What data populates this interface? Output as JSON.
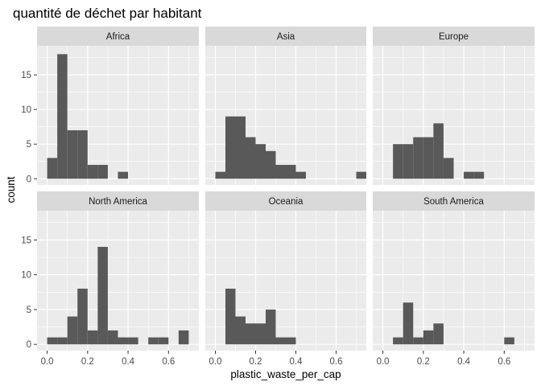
{
  "chart_data": {
    "type": "bar",
    "title": "quantité de déchet par habitant",
    "xlabel": "plastic_waste_per_cap",
    "ylabel": "count",
    "xlim": [
      -0.05,
      0.75
    ],
    "ylim": [
      -0.9,
      19.2
    ],
    "x_ticks": [
      0.0,
      0.2,
      0.4,
      0.6
    ],
    "x_tick_labels": [
      "0.0",
      "0.2",
      "0.4",
      "0.6"
    ],
    "y_ticks": [
      0,
      5,
      10,
      15
    ],
    "y_tick_labels": [
      "0",
      "5",
      "10",
      "15"
    ],
    "bin_width": 0.05,
    "grid": true,
    "panel_background": "#ebebeb",
    "strip_background": "#d9d9d9",
    "bar_color": "#595959",
    "grid_color": "#ffffff",
    "panels": [
      {
        "name": "Africa",
        "bins": [
          [
            0.0,
            3
          ],
          [
            0.05,
            18
          ],
          [
            0.1,
            7
          ],
          [
            0.15,
            7
          ],
          [
            0.2,
            2
          ],
          [
            0.25,
            2
          ],
          [
            0.35,
            1
          ]
        ]
      },
      {
        "name": "Asia",
        "bins": [
          [
            0.0,
            1
          ],
          [
            0.05,
            9
          ],
          [
            0.1,
            9
          ],
          [
            0.15,
            6
          ],
          [
            0.2,
            5
          ],
          [
            0.25,
            4
          ],
          [
            0.3,
            2
          ],
          [
            0.35,
            2
          ],
          [
            0.4,
            1
          ],
          [
            0.7,
            1
          ]
        ]
      },
      {
        "name": "Europe",
        "bins": [
          [
            0.05,
            5
          ],
          [
            0.1,
            5
          ],
          [
            0.15,
            6
          ],
          [
            0.2,
            6
          ],
          [
            0.25,
            8
          ],
          [
            0.3,
            3
          ],
          [
            0.4,
            1
          ],
          [
            0.45,
            1
          ]
        ]
      },
      {
        "name": "North America",
        "bins": [
          [
            0.0,
            1
          ],
          [
            0.05,
            1
          ],
          [
            0.1,
            4
          ],
          [
            0.15,
            8
          ],
          [
            0.2,
            2
          ],
          [
            0.25,
            14
          ],
          [
            0.3,
            2
          ],
          [
            0.35,
            1
          ],
          [
            0.4,
            1
          ],
          [
            0.5,
            1
          ],
          [
            0.55,
            1
          ],
          [
            0.65,
            2
          ]
        ]
      },
      {
        "name": "Oceania",
        "bins": [
          [
            0.05,
            8
          ],
          [
            0.1,
            4
          ],
          [
            0.15,
            3
          ],
          [
            0.2,
            3
          ],
          [
            0.25,
            5
          ],
          [
            0.3,
            1
          ],
          [
            0.35,
            1
          ]
        ]
      },
      {
        "name": "South America",
        "bins": [
          [
            0.05,
            1
          ],
          [
            0.1,
            6
          ],
          [
            0.15,
            1
          ],
          [
            0.2,
            2
          ],
          [
            0.25,
            3
          ],
          [
            0.6,
            1
          ]
        ]
      }
    ]
  }
}
